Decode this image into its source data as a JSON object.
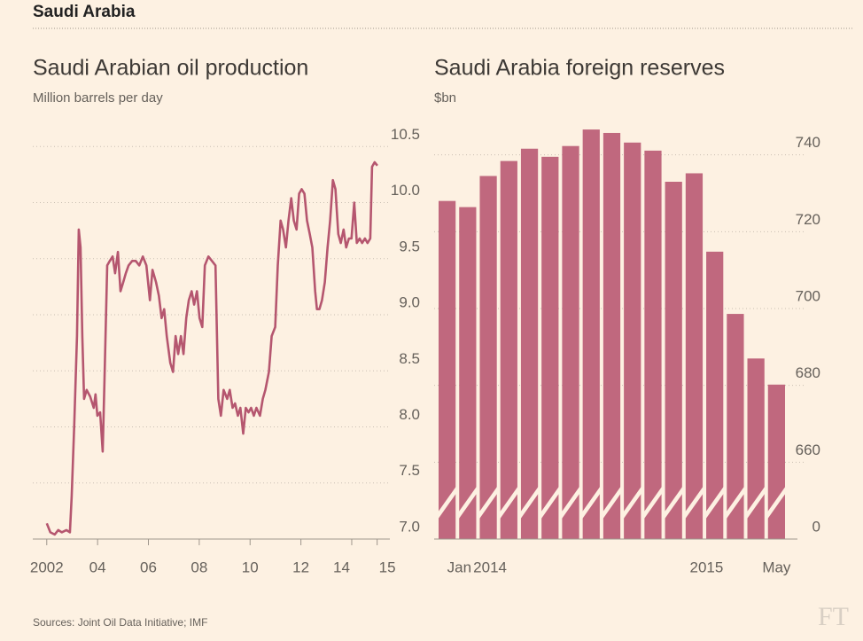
{
  "header": "Saudi Arabia",
  "source": "Sources: Joint Oil Data Initiative; IMF",
  "logo": "FT",
  "chart_data": [
    {
      "type": "line",
      "title": "Saudi Arabian oil production",
      "subtitle": "Million barrels per day",
      "color": "#b5566f",
      "grid": true,
      "xlim": [
        2001.45,
        2015.5
      ],
      "ylim": [
        7.0,
        10.7
      ],
      "xticks": [
        2002,
        {
          "value": 2004,
          "label": "04"
        },
        {
          "value": 2006,
          "label": "06"
        },
        {
          "value": 2008,
          "label": "08"
        },
        {
          "value": 2010,
          "label": "10"
        },
        {
          "value": 2012,
          "label": "12"
        },
        {
          "value": 2014,
          "label": "14"
        },
        {
          "value": 2015,
          "label": "15"
        }
      ],
      "yticks": [
        {
          "value": 7,
          "label": "7.0"
        },
        7.5,
        {
          "value": 8,
          "label": "8.0"
        },
        8.5,
        {
          "value": 9,
          "label": "9.0"
        },
        9.5,
        {
          "value": 10,
          "label": "10.0"
        },
        10.5
      ],
      "x": [
        2002.0,
        2002.14,
        2002.31,
        2002.45,
        2002.59,
        2002.77,
        2002.91,
        2002.98,
        2003.08,
        2003.19,
        2003.26,
        2003.33,
        2003.4,
        2003.47,
        2003.57,
        2003.71,
        2003.85,
        2003.92,
        2003.99,
        2004.1,
        2004.2,
        2004.27,
        2004.38,
        2004.48,
        2004.59,
        2004.69,
        2004.8,
        2004.9,
        2005.01,
        2005.11,
        2005.22,
        2005.36,
        2005.5,
        2005.64,
        2005.78,
        2005.92,
        2006.06,
        2006.16,
        2006.3,
        2006.41,
        2006.52,
        2006.62,
        2006.72,
        2006.86,
        2006.97,
        2007.07,
        2007.17,
        2007.28,
        2007.38,
        2007.49,
        2007.59,
        2007.7,
        2007.8,
        2007.91,
        2008.01,
        2008.12,
        2008.22,
        2008.36,
        2008.5,
        2008.64,
        2008.75,
        2008.85,
        2008.96,
        2009.1,
        2009.2,
        2009.31,
        2009.41,
        2009.52,
        2009.62,
        2009.73,
        2009.83,
        2009.94,
        2010.04,
        2010.15,
        2010.25,
        2010.39,
        2010.5,
        2010.6,
        2010.74,
        2010.85,
        2010.99,
        2011.09,
        2011.2,
        2011.3,
        2011.41,
        2011.51,
        2011.62,
        2011.72,
        2011.83,
        2011.93,
        2012.03,
        2012.14,
        2012.24,
        2012.35,
        2012.45,
        2012.56,
        2012.63,
        2012.73,
        2012.83,
        2012.94,
        2013.05,
        2013.15,
        2013.26,
        2013.36,
        2013.47,
        2013.57,
        2013.68,
        2013.78,
        2013.89,
        2013.99,
        2014.1,
        2014.2,
        2014.31,
        2014.41,
        2014.52,
        2014.62,
        2014.73,
        2014.8,
        2014.9,
        2015.01
      ],
      "values": [
        7.14,
        7.06,
        7.04,
        7.08,
        7.06,
        7.08,
        7.06,
        7.38,
        8.02,
        8.81,
        9.76,
        9.6,
        8.81,
        8.25,
        8.33,
        8.27,
        8.17,
        8.29,
        8.1,
        8.13,
        7.78,
        8.41,
        9.44,
        9.48,
        9.52,
        9.37,
        9.56,
        9.21,
        9.29,
        9.37,
        9.44,
        9.48,
        9.48,
        9.44,
        9.52,
        9.44,
        9.13,
        9.4,
        9.29,
        9.17,
        8.97,
        9.05,
        8.81,
        8.57,
        8.49,
        8.81,
        8.65,
        8.81,
        8.65,
        8.97,
        9.13,
        9.21,
        9.09,
        9.21,
        8.97,
        8.89,
        9.44,
        9.52,
        9.48,
        9.44,
        8.25,
        8.1,
        8.33,
        8.25,
        8.33,
        8.17,
        8.21,
        8.1,
        8.17,
        7.94,
        8.17,
        8.13,
        8.17,
        8.1,
        8.17,
        8.1,
        8.25,
        8.33,
        8.49,
        8.81,
        8.89,
        9.44,
        9.84,
        9.76,
        9.6,
        9.84,
        10.04,
        9.84,
        9.76,
        10.08,
        10.12,
        10.08,
        9.84,
        9.72,
        9.6,
        9.21,
        9.05,
        9.05,
        9.13,
        9.29,
        9.6,
        9.84,
        10.2,
        10.12,
        9.72,
        9.64,
        9.76,
        9.6,
        9.68,
        9.68,
        10.0,
        9.64,
        9.68,
        9.64,
        9.68,
        9.64,
        9.68,
        10.32,
        10.36,
        10.33
      ]
    },
    {
      "type": "bar",
      "title": "Saudi Arabia foreign reserves",
      "subtitle": "$bn",
      "color": "#c0687e",
      "grid": true,
      "axis_break": [
        0,
        640
      ],
      "ylim": [
        0,
        748
      ],
      "yticks": [
        0,
        660,
        680,
        700,
        720,
        740
      ],
      "categories": [
        "Jan",
        null,
        null,
        null,
        null,
        null,
        null,
        null,
        null,
        null,
        null,
        null,
        "2015",
        null,
        null,
        null,
        "May"
      ],
      "year_label": "2014",
      "values": [
        728,
        726.4,
        734.5,
        738.4,
        741.6,
        739.5,
        742.3,
        746.6,
        745.7,
        743.2,
        741.1,
        733,
        735.2,
        714.8,
        698.6,
        687,
        680.2
      ]
    }
  ]
}
